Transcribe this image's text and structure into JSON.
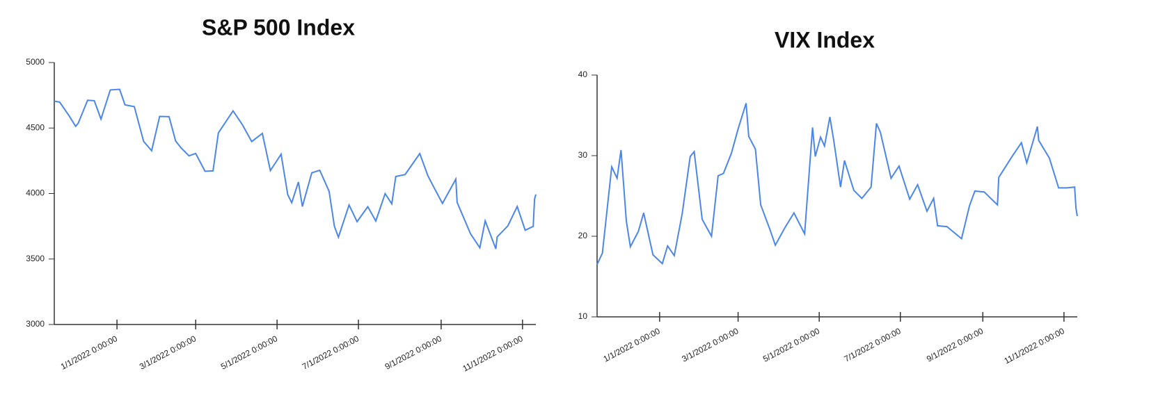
{
  "chart_data": [
    {
      "type": "line",
      "title": "S&P 500 Index",
      "color": "#4a86e8",
      "x": [
        "2021-11-15",
        "2021-11-19",
        "2021-11-26",
        "2021-12-01",
        "2021-12-03",
        "2021-12-10",
        "2021-12-15",
        "2021-12-20",
        "2021-12-27",
        "2022-01-03",
        "2022-01-07",
        "2022-01-14",
        "2022-01-21",
        "2022-01-27",
        "2022-02-02",
        "2022-02-09",
        "2022-02-14",
        "2022-02-18",
        "2022-02-24",
        "2022-03-01",
        "2022-03-08",
        "2022-03-14",
        "2022-03-18",
        "2022-03-29",
        "2022-04-05",
        "2022-04-12",
        "2022-04-20",
        "2022-04-26",
        "2022-05-04",
        "2022-05-09",
        "2022-05-12",
        "2022-05-17",
        "2022-05-20",
        "2022-05-27",
        "2022-06-02",
        "2022-06-09",
        "2022-06-13",
        "2022-06-16",
        "2022-06-24",
        "2022-06-30",
        "2022-07-08",
        "2022-07-14",
        "2022-07-21",
        "2022-07-26",
        "2022-07-29",
        "2022-08-05",
        "2022-08-16",
        "2022-08-22",
        "2022-08-26",
        "2022-09-02",
        "2022-09-12",
        "2022-09-13",
        "2022-09-23",
        "2022-09-30",
        "2022-10-04",
        "2022-10-12",
        "2022-10-13",
        "2022-10-21",
        "2022-10-28",
        "2022-11-03",
        "2022-11-09",
        "2022-11-10",
        "2022-11-11"
      ],
      "values": [
        4705,
        4698,
        4595,
        4513,
        4538,
        4712,
        4709,
        4568,
        4791,
        4796,
        4677,
        4663,
        4398,
        4327,
        4589,
        4587,
        4401,
        4349,
        4288,
        4306,
        4170,
        4173,
        4463,
        4631,
        4525,
        4397,
        4459,
        4175,
        4300,
        3991,
        3930,
        4088,
        3901,
        4158,
        4177,
        4017,
        3750,
        3667,
        3912,
        3785,
        3899,
        3790,
        3999,
        3921,
        4130,
        4145,
        4305,
        4138,
        4058,
        3924,
        4110,
        3932,
        3693,
        3586,
        3791,
        3577,
        3669,
        3752,
        3901,
        3720,
        3749,
        3956,
        3993
      ],
      "xlim": [
        "2021-11-15",
        "2022-11-11"
      ],
      "xticks": [
        {
          "value": "2022-01-01",
          "label": "1/1/2022 0:00:00"
        },
        {
          "value": "2022-03-01",
          "label": "3/1/2022 0:00:00"
        },
        {
          "value": "2022-05-01",
          "label": "5/1/2022 0:00:00"
        },
        {
          "value": "2022-07-01",
          "label": "7/1/2022 0:00:00"
        },
        {
          "value": "2022-09-01",
          "label": "9/1/2022 0:00:00"
        },
        {
          "value": "2022-11-01",
          "label": "11/1/2022 0:00:00"
        }
      ],
      "ylim": [
        3000,
        5000
      ],
      "yticks": [
        3000,
        3500,
        4000,
        4500,
        5000
      ]
    },
    {
      "type": "line",
      "title": "VIX Index",
      "color": "#4a86e8",
      "x": [
        "2021-11-15",
        "2021-11-19",
        "2021-11-26",
        "2021-11-30",
        "2021-12-03",
        "2021-12-07",
        "2021-12-10",
        "2021-12-16",
        "2021-12-20",
        "2021-12-27",
        "2022-01-03",
        "2022-01-07",
        "2022-01-12",
        "2022-01-18",
        "2022-01-24",
        "2022-01-27",
        "2022-02-02",
        "2022-02-09",
        "2022-02-14",
        "2022-02-18",
        "2022-02-24",
        "2022-03-01",
        "2022-03-07",
        "2022-03-09",
        "2022-03-14",
        "2022-03-18",
        "2022-03-25",
        "2022-03-29",
        "2022-04-05",
        "2022-04-12",
        "2022-04-20",
        "2022-04-26",
        "2022-04-28",
        "2022-05-02",
        "2022-05-05",
        "2022-05-09",
        "2022-05-12",
        "2022-05-17",
        "2022-05-20",
        "2022-05-27",
        "2022-06-02",
        "2022-06-09",
        "2022-06-13",
        "2022-06-16",
        "2022-06-24",
        "2022-06-30",
        "2022-07-08",
        "2022-07-14",
        "2022-07-21",
        "2022-07-26",
        "2022-07-29",
        "2022-08-05",
        "2022-08-16",
        "2022-08-22",
        "2022-08-26",
        "2022-09-02",
        "2022-09-12",
        "2022-09-13",
        "2022-09-23",
        "2022-09-30",
        "2022-10-04",
        "2022-10-12",
        "2022-10-13",
        "2022-10-21",
        "2022-10-28",
        "2022-11-03",
        "2022-11-09",
        "2022-11-10",
        "2022-11-11"
      ],
      "values": [
        16.5,
        17.9,
        28.6,
        27.2,
        30.7,
        21.9,
        18.7,
        20.6,
        22.9,
        17.7,
        16.6,
        18.8,
        17.6,
        22.8,
        29.9,
        30.5,
        22.1,
        20.0,
        27.5,
        27.8,
        30.3,
        33.3,
        36.5,
        32.4,
        30.8,
        23.9,
        20.8,
        18.9,
        21.0,
        22.9,
        20.3,
        33.5,
        29.9,
        32.3,
        31.2,
        34.8,
        31.8,
        26.1,
        29.4,
        25.7,
        24.7,
        26.1,
        34.0,
        32.9,
        27.2,
        28.7,
        24.6,
        26.4,
        23.1,
        24.7,
        21.3,
        21.2,
        19.7,
        23.8,
        25.6,
        25.5,
        23.9,
        27.3,
        29.9,
        31.6,
        29.1,
        33.6,
        31.9,
        29.7,
        26.0,
        26.0,
        26.1,
        23.5,
        22.5
      ],
      "xlim": [
        "2021-11-15",
        "2022-11-11"
      ],
      "xticks": [
        {
          "value": "2022-01-01",
          "label": "1/1/2022 0:00:00"
        },
        {
          "value": "2022-03-01",
          "label": "3/1/2022 0:00:00"
        },
        {
          "value": "2022-05-01",
          "label": "5/1/2022 0:00:00"
        },
        {
          "value": "2022-07-01",
          "label": "7/1/2022 0:00:00"
        },
        {
          "value": "2022-09-01",
          "label": "9/1/2022 0:00:00"
        },
        {
          "value": "2022-11-01",
          "label": "11/1/2022 0:00:00"
        }
      ],
      "ylim": [
        10,
        40
      ],
      "yticks": [
        10,
        20,
        30,
        40
      ]
    }
  ]
}
